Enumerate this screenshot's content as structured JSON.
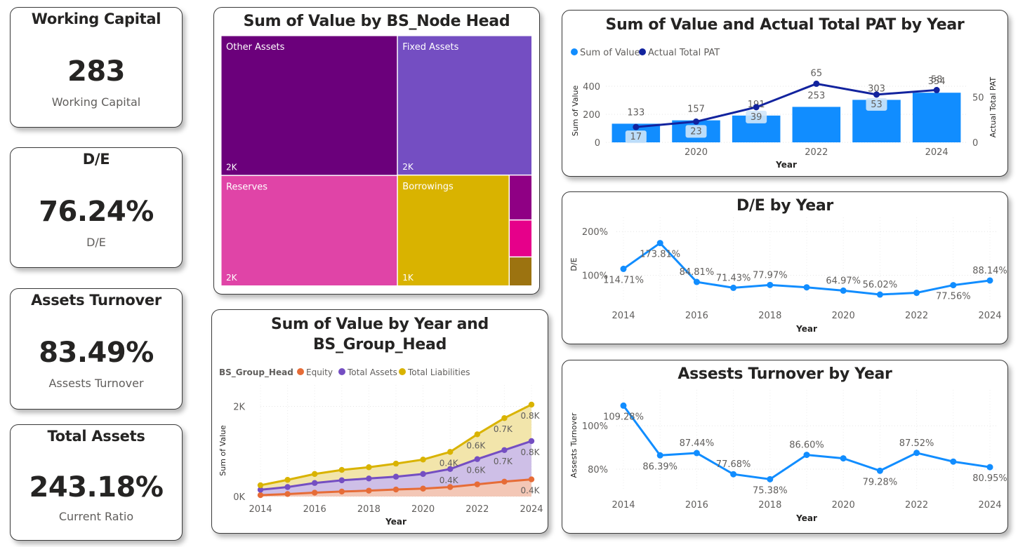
{
  "kpis": {
    "working_capital": {
      "title": "Working Capital",
      "value": "283",
      "label": "Working Capital"
    },
    "de": {
      "title": "D/E",
      "value": "76.24%",
      "label": "D/E"
    },
    "assets_turnover": {
      "title": "Assets Turnover",
      "value": "83.49%",
      "label": "Assests Turnover"
    },
    "total_assets": {
      "title": "Total Assets",
      "value": "243.18%",
      "label": "Current Ratio"
    }
  },
  "colors": {
    "bar_blue": "#118DFF",
    "line_navy": "#12239E",
    "line_blue": "#118DFF",
    "equity": "#E66C37",
    "total_assets": "#744EC2",
    "total_liabilities": "#D9B300",
    "other_assets": "#6B007B",
    "fixed_assets": "#744EC2",
    "reserves": "#E044A7",
    "borrowings": "#D9B300"
  },
  "chart_data": [
    {
      "type": "treemap",
      "title": "Sum of Value by BS_Node Head",
      "items": [
        {
          "name": "Other Assets",
          "label": "2K",
          "value": 2050,
          "color": "#6B007B"
        },
        {
          "name": "Fixed Assets",
          "label": "2K",
          "value": 1560,
          "color": "#744EC2"
        },
        {
          "name": "Reserves",
          "label": "2K",
          "value": 1620,
          "color": "#E044A7"
        },
        {
          "name": "Borrowings",
          "label": "1K",
          "value": 1030,
          "color": "#D9B300"
        },
        {
          "name": "",
          "label": "",
          "value": 85,
          "color": "#8F0084"
        },
        {
          "name": "",
          "label": "",
          "value": 70,
          "color": "#E6008A"
        },
        {
          "name": "",
          "label": "",
          "value": 55,
          "color": "#9C7310"
        }
      ]
    },
    {
      "type": "bar_line_combo",
      "title": "Sum of Value and Actual Total PAT by Year",
      "legend": [
        "Sum of Value",
        "Actual Total PAT"
      ],
      "xlabel": "Year",
      "ylabel": "Sum of Value",
      "y2label": "Actual Total PAT",
      "x": [
        2019,
        2020,
        2021,
        2022,
        2023,
        2024
      ],
      "x_ticks": [
        2020,
        2022,
        2024
      ],
      "bars": [
        133,
        157,
        191,
        253,
        303,
        354
      ],
      "bar_labels": [
        "133",
        "157",
        "191",
        "253",
        "303",
        "354"
      ],
      "line": [
        17,
        23,
        39,
        65,
        53,
        58
      ],
      "line_labels": [
        "17",
        "23",
        "39",
        "65",
        "53",
        "58"
      ],
      "ylim": [
        0,
        450
      ],
      "y_ticks": [
        0,
        200,
        400
      ],
      "y2lim": [
        0,
        70
      ],
      "y2_ticks": [
        0,
        50
      ]
    },
    {
      "type": "line",
      "title": "D/E by Year",
      "xlabel": "Year",
      "ylabel": "D/E",
      "x": [
        2014,
        2015,
        2016,
        2017,
        2018,
        2019,
        2020,
        2021,
        2022,
        2023,
        2024
      ],
      "values": [
        114.71,
        173.81,
        84.81,
        71.43,
        77.97,
        72.5,
        64.97,
        56.02,
        60.0,
        77.56,
        88.14
      ],
      "labels": [
        "114.71%",
        "173.81%",
        "84.81%",
        "71.43%",
        "77.97%",
        "",
        "64.97%",
        "56.02%",
        "",
        "77.56%",
        "88.14%"
      ],
      "x_ticks": [
        2014,
        2016,
        2018,
        2020,
        2022,
        2024
      ],
      "y_ticks": [
        "100%",
        "200%"
      ],
      "ylim": [
        40,
        210
      ]
    },
    {
      "type": "area",
      "title": "Sum of Value by Year and BS_Group_Head",
      "legend_title": "BS_Group_Head",
      "legend": [
        "Equity",
        "Total Assets",
        "Total Liabilities"
      ],
      "xlabel": "Year",
      "ylabel": "Sum of Value",
      "x": [
        2014,
        2015,
        2016,
        2017,
        2018,
        2019,
        2020,
        2021,
        2022,
        2023,
        2024
      ],
      "x_ticks": [
        2014,
        2016,
        2018,
        2020,
        2022,
        2024
      ],
      "y_ticks": [
        "0K",
        "2K"
      ],
      "ylim": [
        0,
        2350
      ],
      "series": [
        {
          "name": "Equity",
          "values": [
            30,
            55,
            85,
            110,
            130,
            155,
            175,
            210,
            270,
            330,
            380
          ]
        },
        {
          "name": "Total Assets",
          "values": [
            150,
            210,
            300,
            360,
            400,
            440,
            500,
            610,
            830,
            1030,
            1230
          ]
        },
        {
          "name": "Total Liabilities",
          "values": [
            250,
            370,
            500,
            590,
            650,
            730,
            820,
            990,
            1380,
            1740,
            2040
          ]
        }
      ],
      "point_labels": [
        {
          "series": "Total Liabilities",
          "x": 2021,
          "text": "0.4K"
        },
        {
          "series": "Total Liabilities",
          "x": 2022,
          "text": "0.6K"
        },
        {
          "series": "Total Liabilities",
          "x": 2023,
          "text": "0.7K"
        },
        {
          "series": "Total Liabilities",
          "x": 2024,
          "text": "0.8K"
        },
        {
          "series": "Total Assets",
          "x": 2021,
          "text": "0.4K"
        },
        {
          "series": "Total Assets",
          "x": 2022,
          "text": "0.6K"
        },
        {
          "series": "Total Assets",
          "x": 2023,
          "text": "0.7K"
        },
        {
          "series": "Total Assets",
          "x": 2024,
          "text": "0.8K"
        },
        {
          "series": "Equity",
          "x": 2024,
          "text": "0.4K"
        }
      ]
    },
    {
      "type": "line",
      "title": "Assests Turnover by Year",
      "xlabel": "Year",
      "ylabel": "Assests Turnover",
      "x": [
        2014,
        2015,
        2016,
        2017,
        2018,
        2019,
        2020,
        2021,
        2022,
        2023,
        2024
      ],
      "values": [
        109.28,
        86.39,
        87.44,
        77.68,
        75.38,
        86.6,
        85.0,
        79.28,
        87.52,
        83.5,
        80.95
      ],
      "labels": [
        "109.28%",
        "86.39%",
        "87.44%",
        "77.68%",
        "75.38%",
        "86.60%",
        "",
        "79.28%",
        "87.52%",
        "",
        "80.95%"
      ],
      "x_ticks": [
        2014,
        2016,
        2018,
        2020,
        2022,
        2024
      ],
      "y_ticks": [
        "80%",
        "100%"
      ],
      "ylim": [
        70,
        112
      ]
    }
  ]
}
